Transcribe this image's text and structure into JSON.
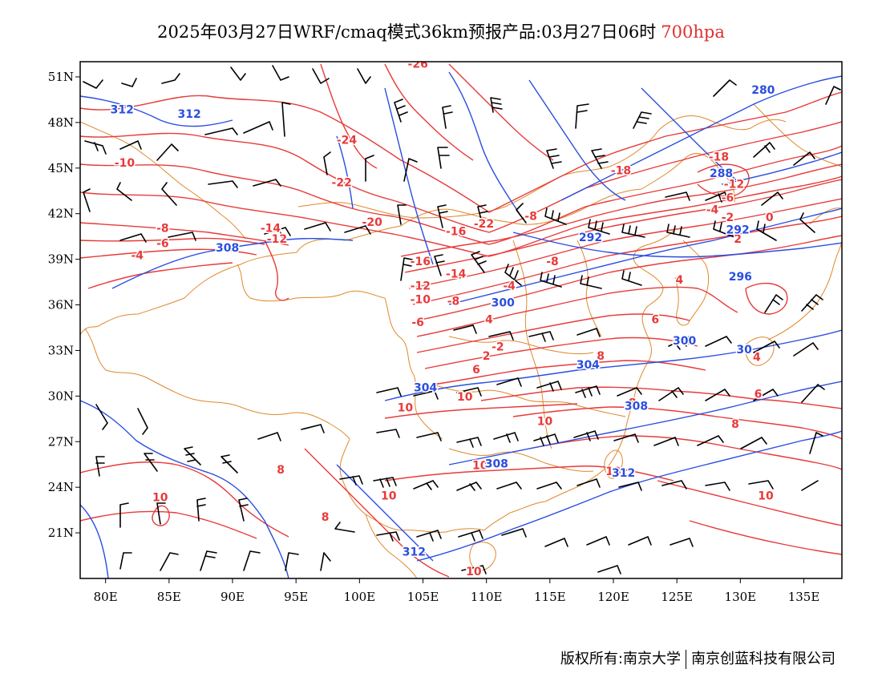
{
  "title": {
    "text": "2025年03月27日WRF/cmaq模式36km预报产品:03月27日06时",
    "level": "700hpa",
    "level_color": "#e03030"
  },
  "footer": {
    "copyright": "版权所有:南京大学",
    "company": "南京创蓝科技有限公司"
  },
  "colors": {
    "temperature": "#e83a3a",
    "geopotential": "#2a4ee0",
    "coastline": "#e0882a",
    "barbs": "#000000"
  },
  "axes": {
    "lon_labels": [
      "80E",
      "85E",
      "90E",
      "95E",
      "100E",
      "105E",
      "110E",
      "115E",
      "120E",
      "125E",
      "130E",
      "135E"
    ],
    "lat_labels": [
      "51N",
      "48N",
      "45N",
      "42N",
      "39N",
      "36N",
      "33N",
      "30N",
      "27N",
      "24N",
      "21N"
    ]
  },
  "contour_labels": {
    "temperature": [
      {
        "text": "-26",
        "lon": 104.6,
        "lat": 51.6
      },
      {
        "text": "-24",
        "lon": 99.0,
        "lat": 46.6
      },
      {
        "text": "-22",
        "lon": 98.6,
        "lat": 43.8
      },
      {
        "text": "-20",
        "lon": 101.0,
        "lat": 41.2
      },
      {
        "text": "-22",
        "lon": 109.8,
        "lat": 41.1
      },
      {
        "text": "-16",
        "lon": 107.6,
        "lat": 40.6
      },
      {
        "text": "-14",
        "lon": 93.0,
        "lat": 40.8
      },
      {
        "text": "-12",
        "lon": 93.5,
        "lat": 40.1
      },
      {
        "text": "-10",
        "lon": 81.5,
        "lat": 45.1
      },
      {
        "text": "-8",
        "lon": 84.5,
        "lat": 40.8
      },
      {
        "text": "-6",
        "lon": 84.5,
        "lat": 39.8
      },
      {
        "text": "-4",
        "lon": 82.5,
        "lat": 39.0
      },
      {
        "text": "-16",
        "lon": 104.8,
        "lat": 38.6
      },
      {
        "text": "-14",
        "lon": 107.6,
        "lat": 37.8
      },
      {
        "text": "-12",
        "lon": 104.8,
        "lat": 37.0
      },
      {
        "text": "-10",
        "lon": 104.8,
        "lat": 36.1
      },
      {
        "text": "-8",
        "lon": 107.4,
        "lat": 36.0
      },
      {
        "text": "-6",
        "lon": 104.6,
        "lat": 34.6
      },
      {
        "text": "-4",
        "lon": 111.8,
        "lat": 37.0
      },
      {
        "text": "-2",
        "lon": 110.9,
        "lat": 33.0
      },
      {
        "text": "2",
        "lon": 110.0,
        "lat": 32.4
      },
      {
        "text": "6",
        "lon": 109.2,
        "lat": 31.5
      },
      {
        "text": "4",
        "lon": 110.2,
        "lat": 34.8
      },
      {
        "text": "8",
        "lon": 119.0,
        "lat": 32.4
      },
      {
        "text": "6",
        "lon": 123.3,
        "lat": 34.8
      },
      {
        "text": "4",
        "lon": 125.2,
        "lat": 37.4
      },
      {
        "text": "8",
        "lon": 121.5,
        "lat": 29.3
      },
      {
        "text": "-18",
        "lon": 120.6,
        "lat": 44.6
      },
      {
        "text": "-18",
        "lon": 128.3,
        "lat": 45.5
      },
      {
        "text": "-12",
        "lon": 129.5,
        "lat": 43.7
      },
      {
        "text": "-8",
        "lon": 113.5,
        "lat": 41.6
      },
      {
        "text": "-8",
        "lon": 115.2,
        "lat": 38.6
      },
      {
        "text": "-6",
        "lon": 129.0,
        "lat": 42.8
      },
      {
        "text": "-4",
        "lon": 127.8,
        "lat": 42.0
      },
      {
        "text": "-2",
        "lon": 129.0,
        "lat": 41.5
      },
      {
        "text": "0",
        "lon": 132.3,
        "lat": 41.5
      },
      {
        "text": "2",
        "lon": 129.8,
        "lat": 40.1
      },
      {
        "text": "10",
        "lon": 103.6,
        "lat": 29.0
      },
      {
        "text": "10",
        "lon": 108.3,
        "lat": 29.7
      },
      {
        "text": "10",
        "lon": 114.6,
        "lat": 28.1
      },
      {
        "text": "10",
        "lon": 109.5,
        "lat": 25.2
      },
      {
        "text": "10",
        "lon": 120.0,
        "lat": 24.8
      },
      {
        "text": "10",
        "lon": 102.3,
        "lat": 23.2
      },
      {
        "text": "10",
        "lon": 109.0,
        "lat": 18.2
      },
      {
        "text": "10",
        "lon": 84.3,
        "lat": 23.1
      },
      {
        "text": "10",
        "lon": 132.0,
        "lat": 23.2
      },
      {
        "text": "8",
        "lon": 93.8,
        "lat": 24.9
      },
      {
        "text": "8",
        "lon": 97.3,
        "lat": 21.8
      },
      {
        "text": "8",
        "lon": 129.6,
        "lat": 27.9
      },
      {
        "text": "6",
        "lon": 131.4,
        "lat": 29.9
      },
      {
        "text": "4",
        "lon": 131.3,
        "lat": 32.3
      }
    ],
    "geopotential": [
      {
        "text": "312",
        "lon": 81.3,
        "lat": 48.6
      },
      {
        "text": "312",
        "lon": 86.6,
        "lat": 48.3
      },
      {
        "text": "308",
        "lon": 89.6,
        "lat": 39.5
      },
      {
        "text": "300",
        "lon": 111.3,
        "lat": 35.9
      },
      {
        "text": "304",
        "lon": 118.0,
        "lat": 31.8
      },
      {
        "text": "304",
        "lon": 105.2,
        "lat": 30.3
      },
      {
        "text": "308",
        "lon": 121.8,
        "lat": 29.1
      },
      {
        "text": "308",
        "lon": 110.8,
        "lat": 25.3
      },
      {
        "text": "312",
        "lon": 120.8,
        "lat": 24.7
      },
      {
        "text": "312",
        "lon": 104.3,
        "lat": 19.5
      },
      {
        "text": "300",
        "lon": 125.6,
        "lat": 33.4
      },
      {
        "text": "296",
        "lon": 130.0,
        "lat": 37.6
      },
      {
        "text": "292",
        "lon": 118.2,
        "lat": 40.2
      },
      {
        "text": "292",
        "lon": 129.8,
        "lat": 40.7
      },
      {
        "text": "288",
        "lon": 128.5,
        "lat": 44.4
      },
      {
        "text": "280",
        "lon": 131.8,
        "lat": 49.9
      },
      {
        "text": "30",
        "lon": 130.3,
        "lat": 32.8
      }
    ]
  }
}
